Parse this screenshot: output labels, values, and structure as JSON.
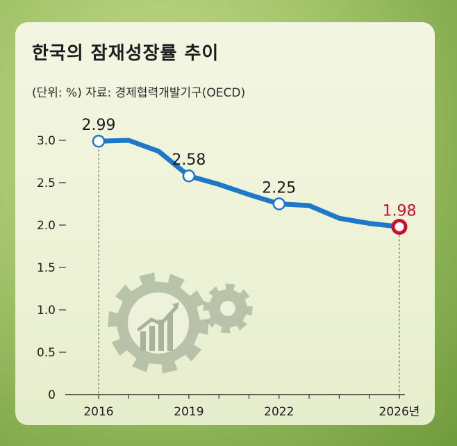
{
  "header": {
    "title": "한국의 잠재성장률 추이",
    "note": "(단위: %) 자료: 경제협력개발기구(OECD)"
  },
  "colors": {
    "line": "#1d78c8",
    "highlight": "#c8102e",
    "gear": "#a7b39c",
    "text": "#1c1c1c"
  },
  "chart_data": {
    "type": "line",
    "title": "한국의 잠재성장률 추이",
    "ylabel": "",
    "xlabel": "",
    "unit": "%",
    "source": "경제협력개발기구(OECD)",
    "ylim": [
      0,
      3.0
    ],
    "yticks": [
      "0",
      "0.5",
      "1.0",
      "1.5",
      "2.0",
      "2.5",
      "3.0"
    ],
    "xticks": [
      "2016",
      "2019",
      "2022",
      "2026년"
    ],
    "x": [
      2016,
      2017,
      2018,
      2019,
      2020,
      2021,
      2022,
      2023,
      2024,
      2025,
      2026
    ],
    "values": [
      2.99,
      3.0,
      2.87,
      2.58,
      2.48,
      2.36,
      2.25,
      2.23,
      2.08,
      2.02,
      1.98
    ],
    "labeled_points": [
      {
        "x": 2016,
        "label": "2.99"
      },
      {
        "x": 2019,
        "label": "2.58"
      },
      {
        "x": 2022,
        "label": "2.25"
      },
      {
        "x": 2026,
        "label": "1.98",
        "highlight": true
      }
    ]
  }
}
